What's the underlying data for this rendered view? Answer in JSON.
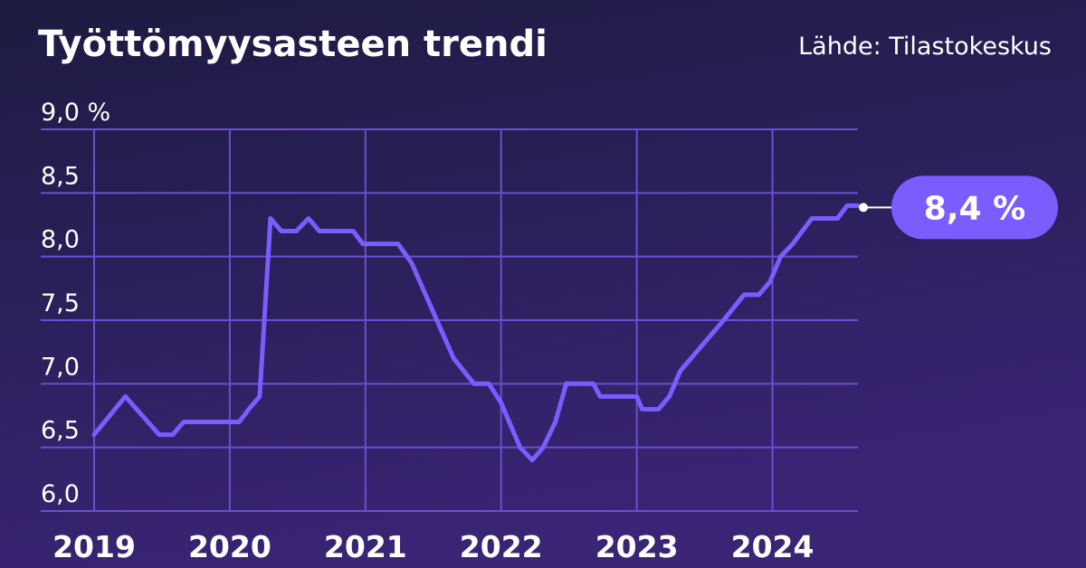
{
  "chart_data": {
    "type": "line",
    "title": "Työttömyysasteen trendi",
    "source": "Lähde: Tilastokeskus",
    "x": [
      2019.0,
      2019.23,
      2019.48,
      2019.58,
      2019.66,
      2020.07,
      2020.14,
      2020.22,
      2020.3,
      2020.38,
      2020.49,
      2020.58,
      2020.66,
      2020.91,
      2020.98,
      2021.24,
      2021.34,
      2021.65,
      2021.8,
      2021.91,
      2022.0,
      2022.14,
      2022.23,
      2022.31,
      2022.4,
      2022.48,
      2022.68,
      2022.73,
      2023.0,
      2023.04,
      2023.16,
      2023.24,
      2023.32,
      2023.48,
      2023.64,
      2023.79,
      2023.9,
      2023.98,
      2024.06,
      2024.15,
      2024.29,
      2024.48,
      2024.55,
      2024.63
    ],
    "series": [
      {
        "color": "#7b5cff",
        "values": [
          6.6,
          6.9,
          6.6,
          6.6,
          6.7,
          6.7,
          6.8,
          6.9,
          8.3,
          8.2,
          8.2,
          8.3,
          8.2,
          8.2,
          8.1,
          8.1,
          7.95,
          7.2,
          7.0,
          7.0,
          6.85,
          6.5,
          6.4,
          6.5,
          6.7,
          7.0,
          7.0,
          6.9,
          6.9,
          6.8,
          6.8,
          6.9,
          7.1,
          7.3,
          7.5,
          7.7,
          7.7,
          7.8,
          8.0,
          8.1,
          8.3,
          8.3,
          8.4,
          8.4
        ],
        "value_labels": [
          null,
          null,
          null,
          null,
          null,
          null,
          null,
          null,
          null,
          null,
          null,
          null,
          null,
          null,
          null,
          null,
          null,
          null,
          null,
          null,
          null,
          null,
          null,
          null,
          null,
          null,
          null,
          null,
          null,
          null,
          null,
          null,
          null,
          null,
          null,
          null,
          null,
          null,
          null,
          null,
          null,
          null,
          null,
          "8,4 %"
        ]
      }
    ],
    "xlim": [
      2019,
      2024.63
    ],
    "xticks": [
      2019,
      2020,
      2021,
      2022,
      2023,
      2024
    ],
    "ylim": [
      6.0,
      9.0
    ],
    "yticks": [
      {
        "value": 6.0,
        "label": "6,0"
      },
      {
        "value": 6.5,
        "label": "6,5"
      },
      {
        "value": 7.0,
        "label": "7,0"
      },
      {
        "value": 7.5,
        "label": "7,5"
      },
      {
        "value": 8.0,
        "label": "8,0"
      },
      {
        "value": 8.5,
        "label": "8,5"
      },
      {
        "value": 9.0,
        "label": "9,0 %"
      }
    ],
    "grid": true
  }
}
